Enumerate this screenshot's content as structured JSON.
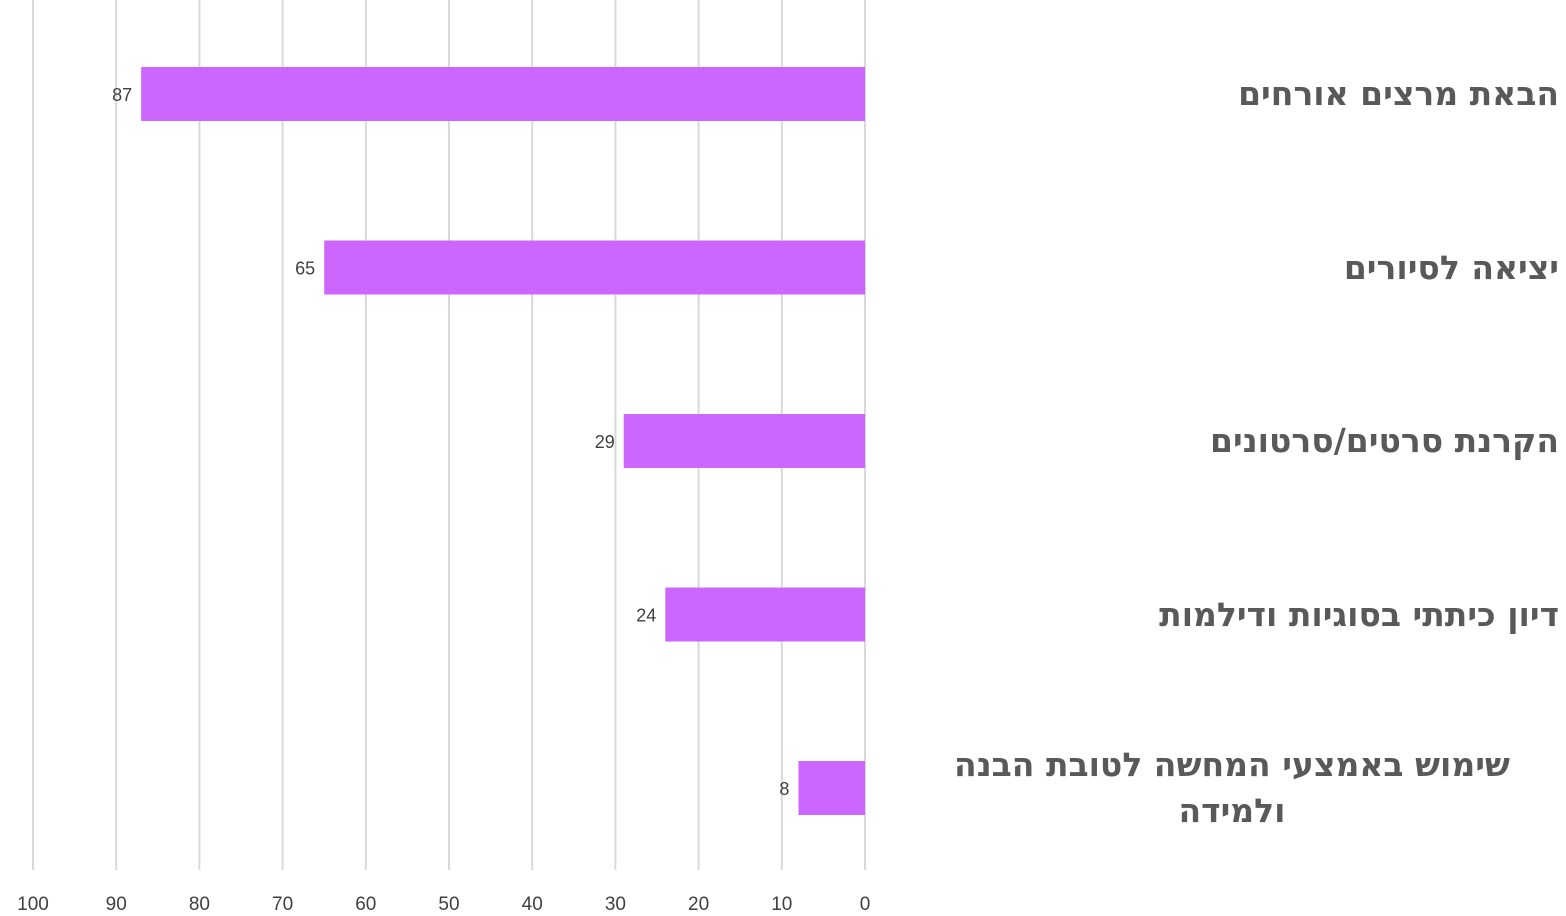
{
  "chart_data": {
    "type": "bar",
    "orientation": "horizontal",
    "x_direction": "reversed",
    "categories": [
      "הבאת מרצים אורחים",
      "יציאה לסיורים",
      "הקרנת סרטים/סרטונים",
      "דיון כיתתי בסוגיות ודילמות",
      "שימוש באמצעי המחשה לטובת הבנה ולמידה"
    ],
    "values": [
      87,
      65,
      29,
      24,
      8
    ],
    "data_labels": [
      "87",
      "65",
      "29",
      "24",
      "8"
    ],
    "xlim": [
      0,
      100
    ],
    "x_ticks": [
      "0",
      "10",
      "20",
      "30",
      "40",
      "50",
      "60",
      "70",
      "80",
      "90",
      "100"
    ],
    "grid": true,
    "legend": "none",
    "bar_color": "#cc66ff",
    "grid_color": "#d9d9d9",
    "label_color": "#595959"
  }
}
